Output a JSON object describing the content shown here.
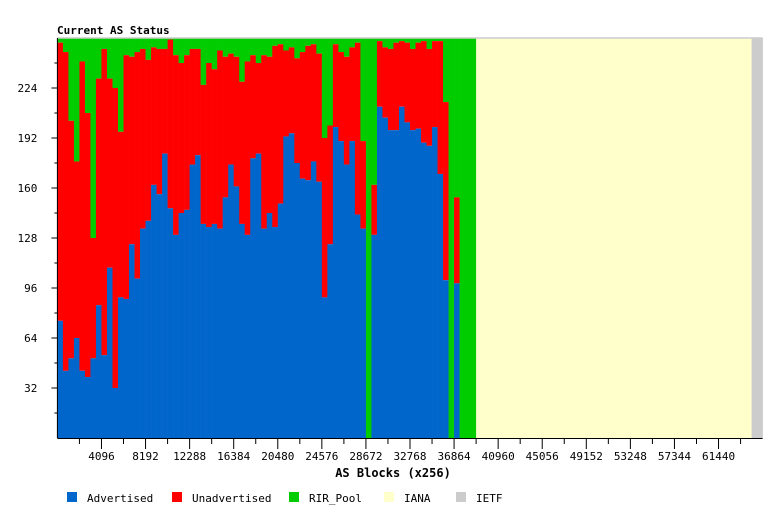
{
  "chart_data": {
    "type": "bar",
    "stacked": true,
    "title": "Current AS Status",
    "xlabel": "AS Blocks (x256)",
    "ylabel": "",
    "xlim": [
      0,
      65536
    ],
    "ylim": [
      0,
      256
    ],
    "xticks": [
      4096,
      8192,
      12288,
      16384,
      20480,
      24576,
      28672,
      32768,
      36864,
      40960,
      45056,
      49152,
      53248,
      57344,
      61440
    ],
    "yticks": [
      32,
      64,
      96,
      128,
      160,
      192,
      224
    ],
    "grid": false,
    "legend_position": "bottom",
    "colors": {
      "Advertised": "#0066cc",
      "Unadvertised": "#ff0000",
      "RIR_Pool": "#00cc00",
      "IANA": "#ffffcc",
      "IETF": "#cccccc"
    },
    "legend": [
      "Advertised",
      "Unadvertised",
      "RIR_Pool",
      "IANA",
      "IETF"
    ],
    "bar_block_width": 512,
    "series": [
      {
        "name": "Advertised",
        "values": [
          75,
          43,
          51,
          64,
          43,
          39,
          51,
          85,
          53,
          109,
          32,
          90,
          89,
          124,
          102,
          134,
          139,
          162,
          156,
          182,
          147,
          130,
          144,
          146,
          175,
          181,
          137,
          135,
          137,
          134,
          154,
          175,
          161,
          137,
          130,
          179,
          182,
          134,
          144,
          135,
          150,
          193,
          195,
          176,
          166,
          165,
          177,
          164,
          90,
          124,
          199,
          190,
          175,
          190,
          143,
          134,
          0,
          130,
          212,
          205,
          197,
          197,
          212,
          202,
          197,
          198,
          189,
          187,
          199,
          169,
          101,
          0,
          99
        ]
      },
      {
        "name": "Unadvertised",
        "values": [
          178,
          204,
          152,
          113,
          198,
          169,
          77,
          145,
          196,
          121,
          192,
          106,
          156,
          120,
          145,
          115,
          103,
          88,
          93,
          67,
          108,
          115,
          96,
          99,
          74,
          68,
          89,
          105,
          99,
          114,
          90,
          71,
          83,
          91,
          111,
          66,
          58,
          111,
          100,
          116,
          102,
          55,
          55,
          67,
          81,
          86,
          75,
          82,
          102,
          76,
          53,
          57,
          69,
          60,
          110,
          56,
          0,
          32,
          42,
          45,
          52,
          56,
          42,
          51,
          52,
          55,
          65,
          62,
          55,
          85,
          114,
          0,
          55
        ]
      }
    ],
    "regions": [
      {
        "name": "RIR_Pool",
        "from": 37376,
        "to": 38912
      },
      {
        "name": "IANA",
        "from": 38912,
        "to": 64512
      },
      {
        "name": "IETF",
        "from": 64512,
        "to": 65536
      }
    ]
  }
}
